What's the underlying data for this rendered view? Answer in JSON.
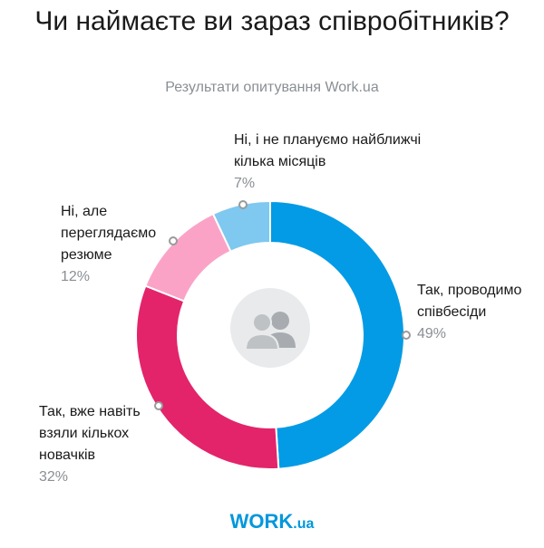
{
  "title": "Чи наймаєте ви зараз співробітників?",
  "subtitle": "Результати опитування Work.ua",
  "logo": {
    "main": "WORK",
    "suffix": ".ua"
  },
  "chart_data": {
    "type": "pie",
    "variant": "donut",
    "slices": [
      {
        "label": "Так, проводимо співбесіди",
        "value": 49,
        "value_label": "49%",
        "color": "#039be5"
      },
      {
        "label": "Так, вже навіть взяли кількох новачків",
        "value": 32,
        "value_label": "32%",
        "color": "#e3246a"
      },
      {
        "label": "Ні, але переглядаємо резюме",
        "value": 12,
        "value_label": "12%",
        "color": "#fba3c6"
      },
      {
        "label": "Ні, і не плануємо найближчі кілька місяців",
        "value": 7,
        "value_label": "7%",
        "color": "#7fc8ef"
      }
    ],
    "center_icon": "users-icon"
  }
}
